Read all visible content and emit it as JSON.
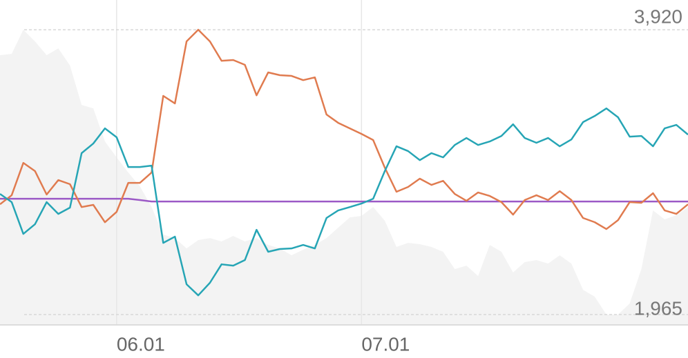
{
  "chart_data": {
    "type": "line",
    "categories": [
      null,
      null,
      null,
      null,
      null,
      null,
      null,
      null,
      null,
      null,
      "06.01",
      null,
      null,
      null,
      null,
      null,
      null,
      null,
      null,
      null,
      null,
      null,
      null,
      null,
      null,
      null,
      null,
      null,
      null,
      null,
      null,
      "07.01",
      null,
      null,
      null,
      null,
      null,
      null,
      null,
      null,
      null,
      null,
      null,
      null,
      null,
      null,
      null,
      null,
      null,
      null,
      null,
      null,
      null,
      null,
      null,
      null,
      null,
      null,
      null,
      null
    ],
    "series": [
      {
        "type": "area",
        "color": "#f3f3f3",
        "values": [
          3745,
          3754,
          3920,
          3840,
          3745,
          3792,
          3674,
          3404,
          3380,
          3153,
          3044,
          2940,
          2845,
          2703,
          2514,
          2490,
          2419,
          2476,
          2490,
          2467,
          2505,
          2467,
          2490,
          2443,
          2419,
          2372,
          2410,
          2443,
          2490,
          2561,
          2632,
          2642,
          2703,
          2609,
          2429,
          2457,
          2448,
          2429,
          2396,
          2277,
          2301,
          2230,
          2443,
          2396,
          2254,
          2325,
          2339,
          2315,
          2372,
          2315,
          2135,
          2088,
          1965,
          1965,
          2041,
          2277,
          2680,
          2618,
          2647,
          2703
        ]
      },
      {
        "type": "line",
        "color": "#9b59c6",
        "values": [
          2760,
          2760,
          2760,
          2760,
          2760,
          2760,
          2760,
          2760,
          2760,
          2760,
          2760,
          2760,
          2751,
          2741,
          2741,
          2741,
          2741,
          2741,
          2741,
          2741,
          2741,
          2741,
          2741,
          2741,
          2741,
          2741,
          2741,
          2741,
          2741,
          2741,
          2741,
          2741,
          2741,
          2741,
          2741,
          2741,
          2741,
          2741,
          2741,
          2741,
          2741,
          2741,
          2741,
          2741,
          2741,
          2741,
          2741,
          2741,
          2741,
          2741,
          2741,
          2741,
          2741,
          2741,
          2741,
          2741,
          2741,
          2741,
          2741,
          2741
        ]
      },
      {
        "type": "line",
        "color": "#e07b4f",
        "values": [
          2722,
          2784,
          3006,
          2950,
          2789,
          2888,
          2860,
          2703,
          2718,
          2599,
          2670,
          2869,
          2869,
          2940,
          3466,
          3414,
          3840,
          3920,
          3840,
          3707,
          3712,
          3679,
          3470,
          3627,
          3608,
          3603,
          3574,
          3593,
          3338,
          3281,
          3243,
          3205,
          3163,
          2973,
          2808,
          2841,
          2898,
          2855,
          2883,
          2793,
          2746,
          2803,
          2779,
          2737,
          2651,
          2751,
          2784,
          2751,
          2812,
          2751,
          2628,
          2599,
          2552,
          2613,
          2737,
          2732,
          2798,
          2680,
          2656,
          2722
        ]
      },
      {
        "type": "line",
        "color": "#26a5b5",
        "values": [
          2793,
          2737,
          2519,
          2585,
          2737,
          2656,
          2699,
          3073,
          3139,
          3243,
          3182,
          2978,
          2978,
          2987,
          2457,
          2500,
          2173,
          2097,
          2183,
          2310,
          2301,
          2339,
          2547,
          2396,
          2415,
          2419,
          2443,
          2419,
          2628,
          2680,
          2703,
          2727,
          2760,
          2950,
          3120,
          3087,
          3025,
          3073,
          3044,
          3129,
          3177,
          3129,
          3153,
          3191,
          3271,
          3177,
          3144,
          3177,
          3120,
          3167,
          3286,
          3328,
          3380,
          3319,
          3186,
          3191,
          3120,
          3243,
          3267,
          3200
        ]
      }
    ],
    "ylim": [
      1899,
      4124
    ],
    "yticks": [
      {
        "value": 3920,
        "label": "3,920"
      },
      {
        "value": 1965,
        "label": "1,965"
      }
    ],
    "grid": true
  }
}
